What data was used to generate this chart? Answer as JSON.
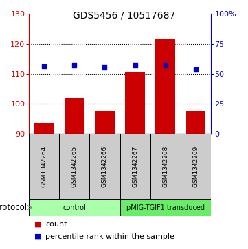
{
  "title": "GDS5456 / 10517687",
  "samples": [
    "GSM1342264",
    "GSM1342265",
    "GSM1342266",
    "GSM1342267",
    "GSM1342268",
    "GSM1342269"
  ],
  "counts": [
    93.5,
    102.0,
    97.5,
    110.5,
    121.5,
    97.5
  ],
  "percentiles": [
    56.0,
    57.0,
    55.5,
    57.0,
    57.0,
    53.5
  ],
  "left_ylim": [
    90,
    130
  ],
  "right_ylim": [
    0,
    100
  ],
  "left_yticks": [
    90,
    100,
    110,
    120,
    130
  ],
  "right_yticks": [
    0,
    25,
    50,
    75,
    100
  ],
  "right_yticklabels": [
    "0",
    "25",
    "50",
    "75",
    "100%"
  ],
  "bar_color": "#cc0000",
  "dot_color": "#0000cc",
  "grid_color": "#000000",
  "protocol_groups": [
    {
      "label": "control",
      "samples_idx": [
        0,
        1,
        2
      ],
      "color": "#aaffaa"
    },
    {
      "label": "pMIG-TGIF1 transduced",
      "samples_idx": [
        3,
        4,
        5
      ],
      "color": "#66ee66"
    }
  ],
  "legend_count_label": "count",
  "legend_percentile_label": "percentile rank within the sample",
  "protocol_label": "protocol",
  "sample_area_color": "#cccccc",
  "figsize": [
    3.61,
    3.63
  ],
  "dpi": 100
}
